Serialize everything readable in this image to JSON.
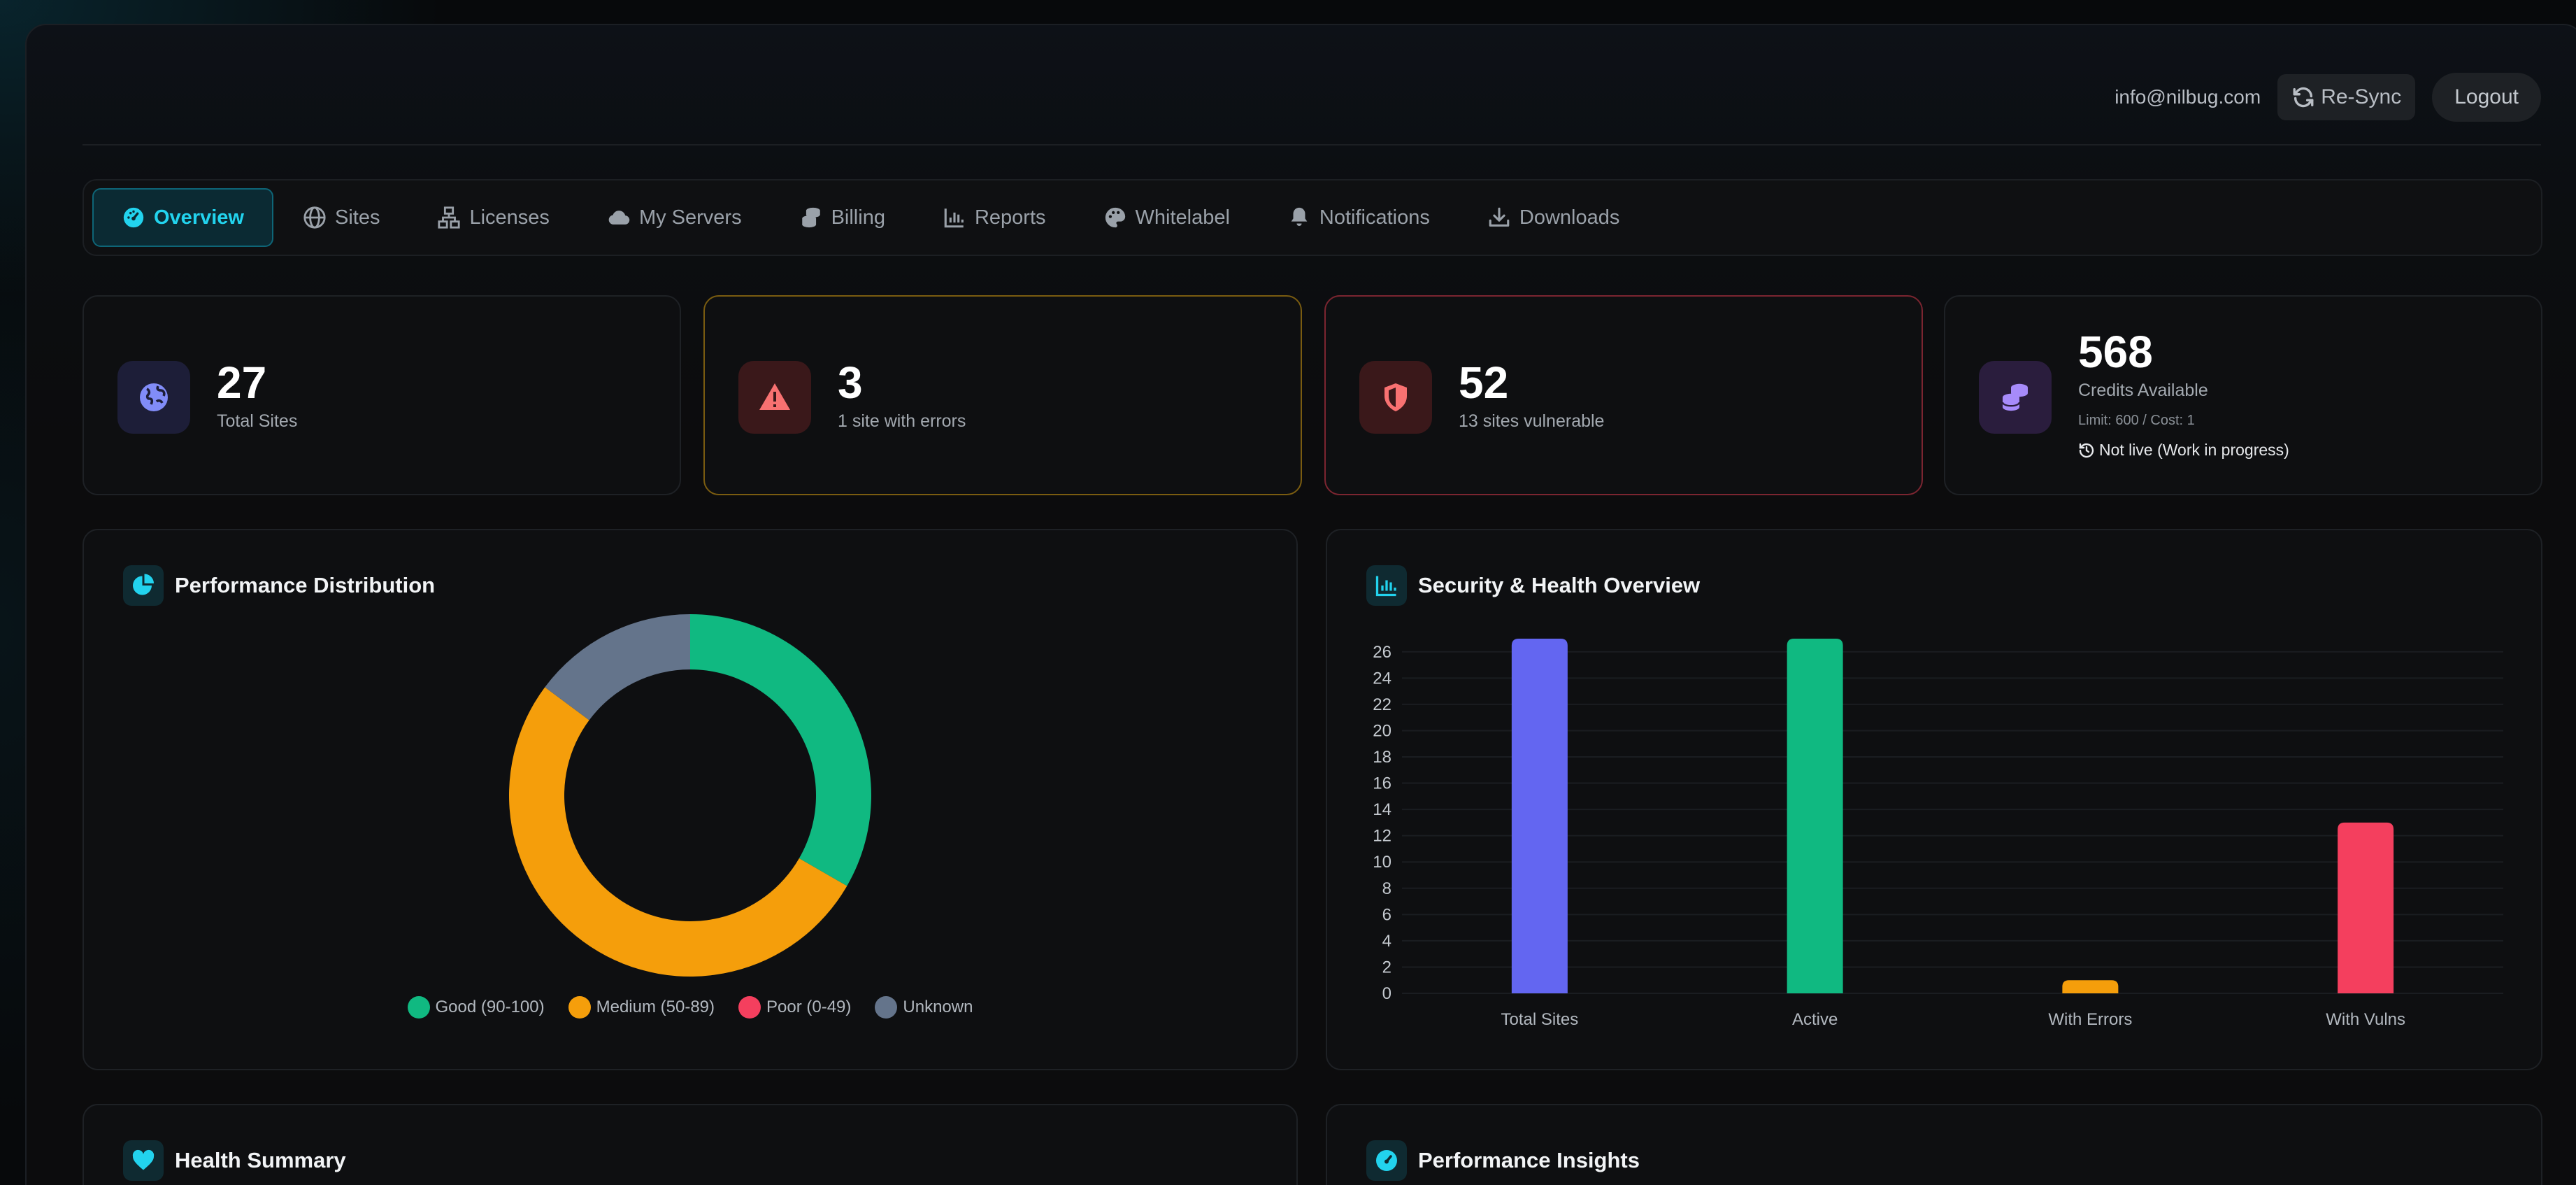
{
  "header": {
    "email": "info@nilbug.com",
    "resync_label": "Re-Sync",
    "logout_label": "Logout"
  },
  "nav": {
    "items": [
      {
        "label": "Overview",
        "icon": "gauge-icon",
        "active": true
      },
      {
        "label": "Sites",
        "icon": "globe-icon"
      },
      {
        "label": "Licenses",
        "icon": "network-icon"
      },
      {
        "label": "My Servers",
        "icon": "cloud-icon"
      },
      {
        "label": "Billing",
        "icon": "coins-icon"
      },
      {
        "label": "Reports",
        "icon": "bar-chart-icon"
      },
      {
        "label": "Whitelabel",
        "icon": "palette-icon"
      },
      {
        "label": "Notifications",
        "icon": "bell-icon"
      },
      {
        "label": "Downloads",
        "icon": "download-icon"
      }
    ]
  },
  "stats": [
    {
      "value": "27",
      "label": "Total Sites",
      "icon": "globe-icon",
      "accent": "#818cf8"
    },
    {
      "value": "3",
      "label": "1 site with errors",
      "icon": "warning-triangle-icon",
      "accent": "#f87171"
    },
    {
      "value": "52",
      "label": "13 sites vulnerable",
      "icon": "shield-icon",
      "accent": "#f87171"
    },
    {
      "value": "568",
      "label": "Credits Available",
      "sub": "Limit: 600 / Cost: 1",
      "note": "Not live (Work in progress)",
      "icon": "coins-icon",
      "accent": "#a78bfa"
    }
  ],
  "panels": {
    "performance": {
      "title": "Performance Distribution",
      "icon": "pie-chart-icon"
    },
    "security": {
      "title": "Security & Health Overview",
      "icon": "bar-chart-icon"
    },
    "health": {
      "title": "Health Summary",
      "icon": "heart-icon"
    },
    "insights": {
      "title": "Performance Insights",
      "icon": "gauge-icon"
    }
  },
  "chart_data": [
    {
      "type": "pie",
      "title": "Performance Distribution",
      "donut": true,
      "categories": [
        "Good (90-100)",
        "Medium (50-89)",
        "Poor (0-49)",
        "Unknown"
      ],
      "values": [
        9,
        14,
        0,
        4
      ],
      "colors": [
        "#10b981",
        "#f59e0b",
        "#f43f5e",
        "#64748b"
      ],
      "legend": "bottom"
    },
    {
      "type": "bar",
      "title": "Security & Health Overview",
      "categories": [
        "Total Sites",
        "Active",
        "With Errors",
        "With Vulns"
      ],
      "values": [
        27,
        27,
        1,
        13
      ],
      "colors": [
        "#6366f1",
        "#10b981",
        "#f59e0b",
        "#f43f5e"
      ],
      "yticks": [
        0,
        2,
        4,
        6,
        8,
        10,
        12,
        14,
        16,
        18,
        20,
        22,
        24,
        26
      ],
      "ylim": [
        0,
        27
      ],
      "grid": true
    }
  ]
}
